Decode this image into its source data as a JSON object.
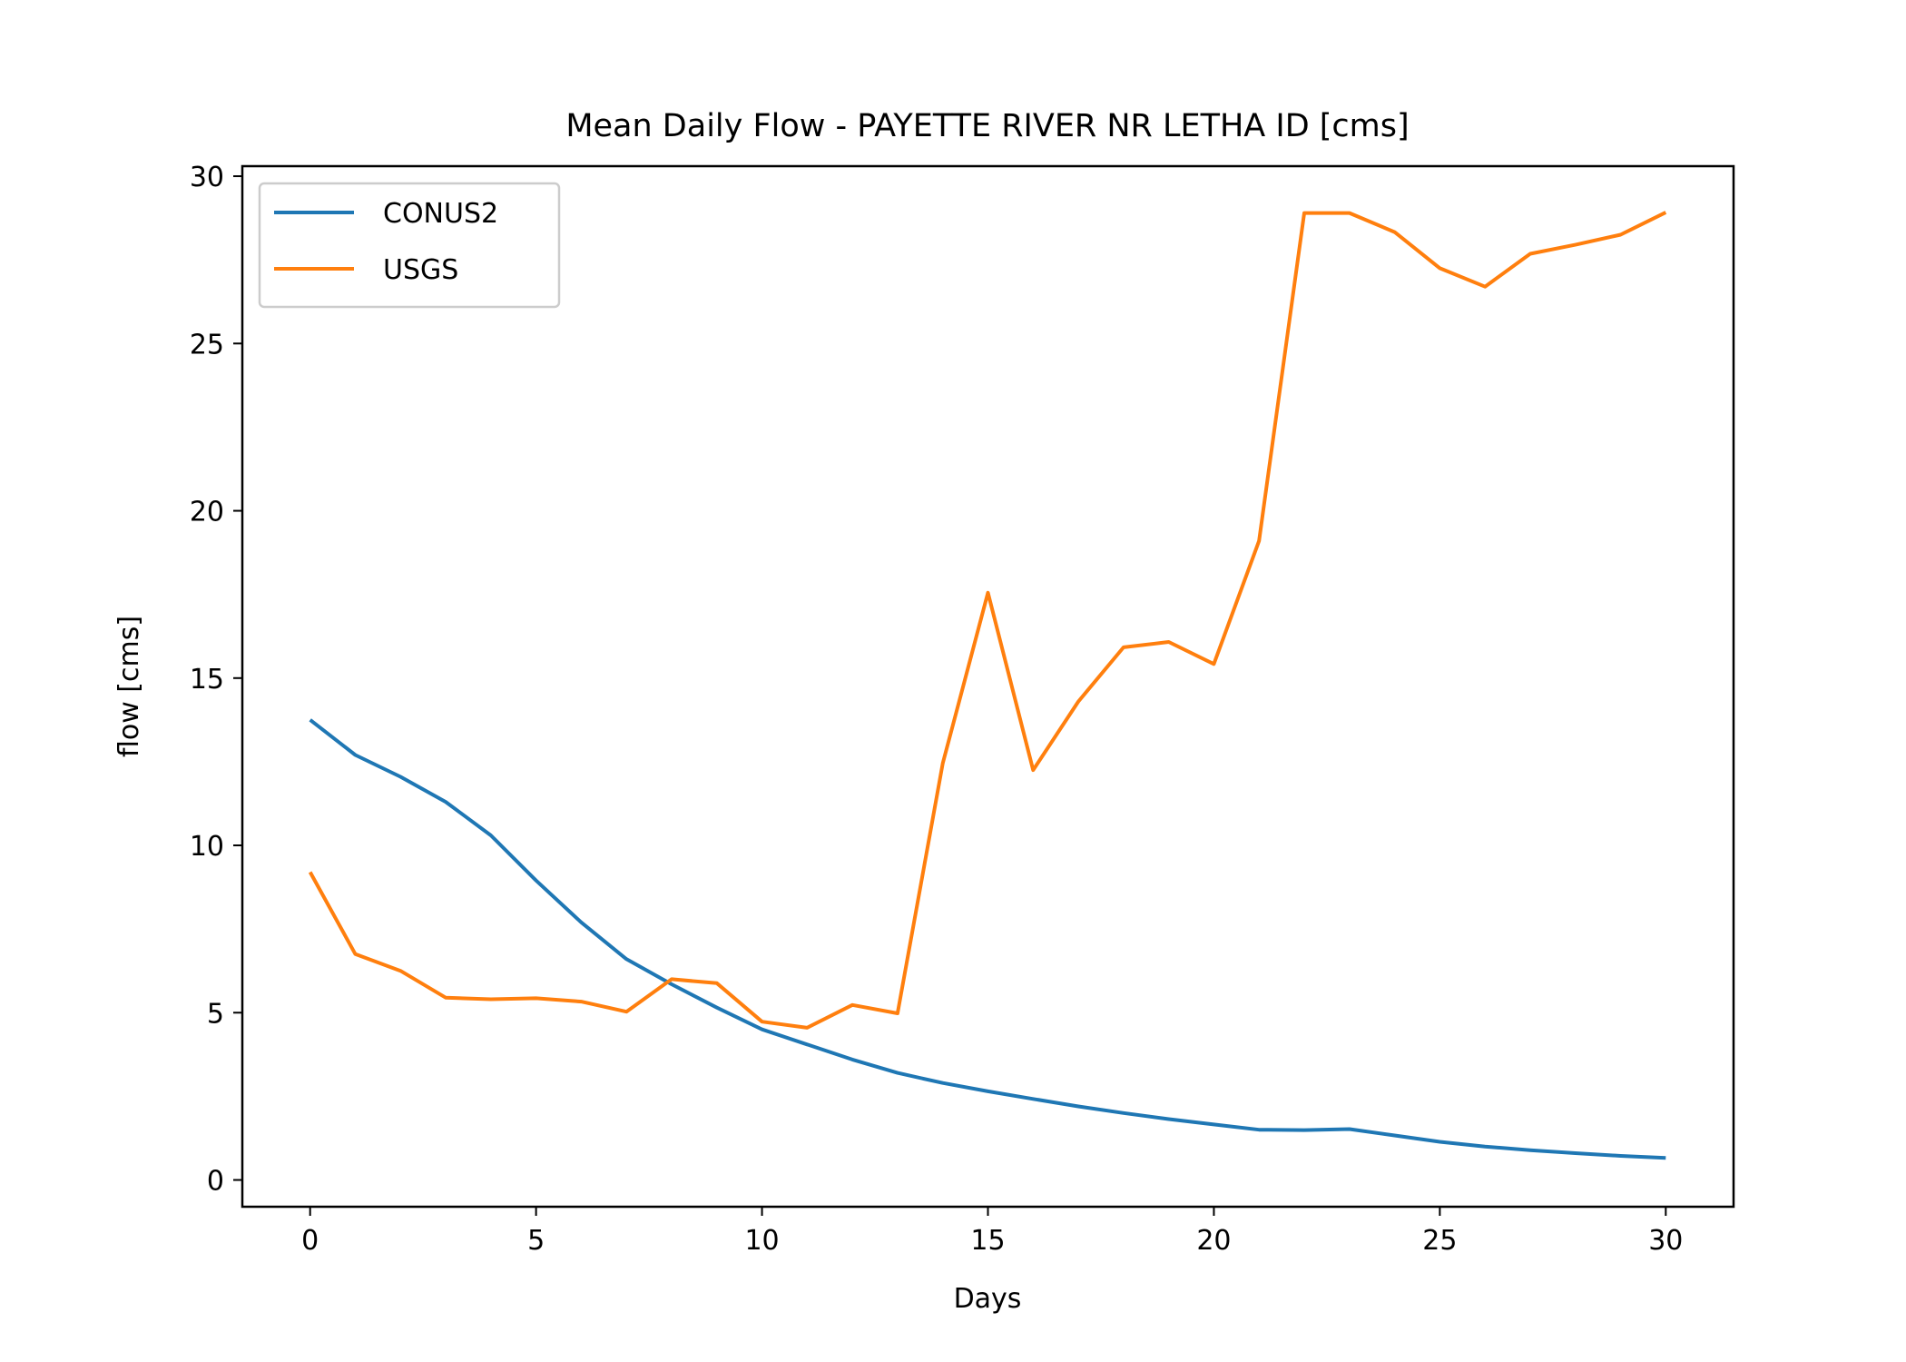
{
  "chart_data": {
    "type": "line",
    "title": "Mean Daily Flow - PAYETTE RIVER NR LETHA ID [cms]",
    "xlabel": "Days",
    "ylabel": "flow [cms]",
    "xlim": [
      -1.5,
      31.5
    ],
    "ylim": [
      -0.8,
      30.3
    ],
    "xticks": [
      0,
      5,
      10,
      15,
      20,
      25,
      30
    ],
    "yticks": [
      0,
      5,
      10,
      15,
      20,
      25,
      30
    ],
    "grid": false,
    "legend_position": "top-left",
    "x": [
      0,
      1,
      2,
      3,
      4,
      5,
      6,
      7,
      8,
      9,
      10,
      11,
      12,
      13,
      14,
      15,
      16,
      17,
      18,
      19,
      20,
      21,
      22,
      23,
      24,
      25,
      26,
      27,
      28,
      29,
      30
    ],
    "series": [
      {
        "name": "CONUS2",
        "color": "#1f77b4",
        "values": [
          13.75,
          12.7,
          12.05,
          11.3,
          10.3,
          8.95,
          7.7,
          6.6,
          5.85,
          5.15,
          4.5,
          4.05,
          3.6,
          3.2,
          2.9,
          2.65,
          2.42,
          2.2,
          2.0,
          1.82,
          1.66,
          1.5,
          1.49,
          1.52,
          1.33,
          1.14,
          1.0,
          0.89,
          0.8,
          0.72,
          0.66
        ]
      },
      {
        "name": "USGS",
        "color": "#ff7f0e",
        "values": [
          9.2,
          6.75,
          6.25,
          5.45,
          5.4,
          5.43,
          5.33,
          5.03,
          6.0,
          5.88,
          4.73,
          4.55,
          5.23,
          4.98,
          12.45,
          17.55,
          12.25,
          14.3,
          15.92,
          16.08,
          15.42,
          19.1,
          28.9,
          28.9,
          28.33,
          27.25,
          26.7,
          27.68,
          27.95,
          28.25,
          28.92
        ]
      }
    ]
  }
}
